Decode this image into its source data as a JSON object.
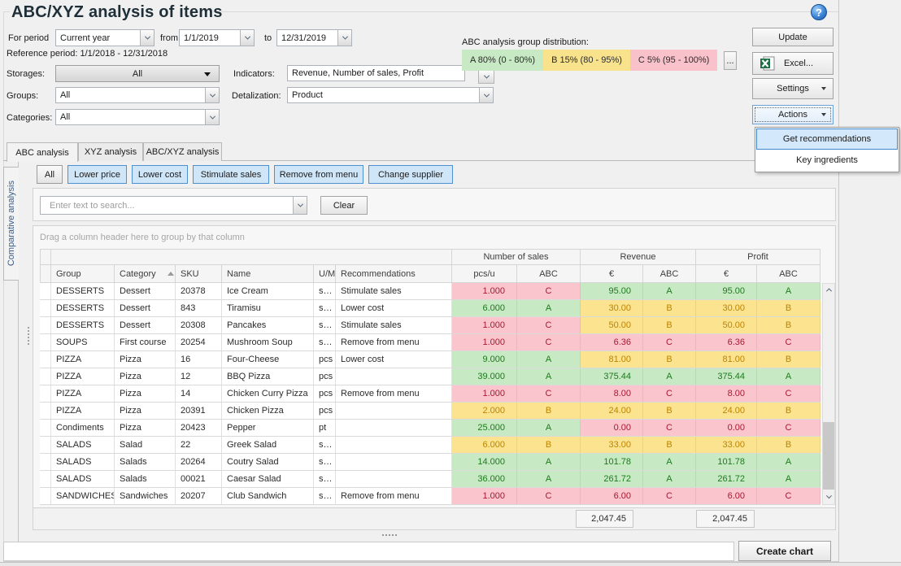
{
  "window": {
    "title": "ABC/XYZ analysis of items",
    "help_icon": "?"
  },
  "filters": {
    "for_period_label": "For period",
    "period_value": "Current year",
    "from_label": "from",
    "from_value": "1/1/2019",
    "to_label": "to",
    "to_value": "12/31/2019",
    "reference_period": "Reference period: 1/1/2018 - 12/31/2018",
    "storages_label": "Storages:",
    "storages_value": "All",
    "groups_label": "Groups:",
    "groups_value": "All",
    "categories_label": "Categories:",
    "categories_value": "All",
    "indicators_label": "Indicators:",
    "indicators_value": "Revenue, Number of sales, Profit",
    "detalization_label": "Detalization:",
    "detalization_value": "Product"
  },
  "distribution": {
    "label": "ABC analysis group distribution:",
    "segments": [
      {
        "text": "A 80% (0 - 80%)",
        "color": "#c7e9c3"
      },
      {
        "text": "B 15% (80 - 95%)",
        "color": "#f8e28c"
      },
      {
        "text": "C 5% (95 - 100%)",
        "color": "#f9c2ca"
      }
    ],
    "more": "..."
  },
  "toolbar": {
    "update": "Update",
    "excel": "Excel...",
    "settings": "Settings",
    "actions": "Actions"
  },
  "actions_menu": {
    "items": [
      "Get recommendations",
      "Key ingredients"
    ],
    "highlighted": "Get recommendations"
  },
  "tabs": [
    {
      "label": "ABC analysis",
      "active": true
    },
    {
      "label": "XYZ analysis",
      "active": false
    },
    {
      "label": "ABC/XYZ analysis",
      "active": false
    }
  ],
  "side_tab": "Comparative analysis",
  "filter_buttons": [
    {
      "label": "All",
      "style": "default"
    },
    {
      "label": "Lower price",
      "style": "blue"
    },
    {
      "label": "Lower cost",
      "style": "blue"
    },
    {
      "label": "Stimulate sales",
      "style": "blue"
    },
    {
      "label": "Remove from menu",
      "style": "blue"
    },
    {
      "label": "Change supplier",
      "style": "blue"
    }
  ],
  "search": {
    "placeholder": "Enter text to search...",
    "clear_label": "Clear"
  },
  "grid": {
    "group_hint": "Drag a column header here to group by that column",
    "bands": [
      "Number of sales",
      "Revenue",
      "Profit"
    ],
    "columns": {
      "group": "Group",
      "category": "Category",
      "sku": "SKU",
      "name": "Name",
      "um": "U/M",
      "recommendations": "Recommendations"
    },
    "subcolumns": {
      "sales_qty": "pcs/u",
      "sales_abc": "ABC",
      "revenue_eur": "€",
      "revenue_abc": "ABC",
      "profit_eur": "€",
      "profit_abc": "ABC"
    },
    "sorted_column": "Category",
    "rows": [
      {
        "group": "DESSERTS",
        "category": "Dessert",
        "sku": "20378",
        "name": "Ice Cream",
        "um": "s…",
        "recommendation": "Stimulate sales",
        "sales": "1.000",
        "sales_abc": "C",
        "revenue": "95.00",
        "revenue_abc": "A",
        "profit": "95.00",
        "profit_abc": "A"
      },
      {
        "group": "DESSERTS",
        "category": "Dessert",
        "sku": "843",
        "name": "Tiramisu",
        "um": "s…",
        "recommendation": "Lower cost",
        "sales": "6.000",
        "sales_abc": "A",
        "revenue": "30.00",
        "revenue_abc": "B",
        "profit": "30.00",
        "profit_abc": "B"
      },
      {
        "group": "DESSERTS",
        "category": "Dessert",
        "sku": "20308",
        "name": "Pancakes",
        "um": "s…",
        "recommendation": "Stimulate sales",
        "sales": "1.000",
        "sales_abc": "C",
        "revenue": "50.00",
        "revenue_abc": "B",
        "profit": "50.00",
        "profit_abc": "B"
      },
      {
        "group": "SOUPS",
        "category": "First course",
        "sku": "20254",
        "name": "Mushroom Soup",
        "um": "s…",
        "recommendation": "Remove from menu",
        "sales": "1.000",
        "sales_abc": "C",
        "revenue": "6.36",
        "revenue_abc": "C",
        "profit": "6.36",
        "profit_abc": "C"
      },
      {
        "group": "PIZZA",
        "category": "Pizza",
        "sku": "16",
        "name": "Four-Cheese",
        "um": "pcs",
        "recommendation": "Lower cost",
        "sales": "9.000",
        "sales_abc": "A",
        "revenue": "81.00",
        "revenue_abc": "B",
        "profit": "81.00",
        "profit_abc": "B"
      },
      {
        "group": "PIZZA",
        "category": "Pizza",
        "sku": "12",
        "name": "BBQ Pizza",
        "um": "pcs",
        "recommendation": "",
        "sales": "39.000",
        "sales_abc": "A",
        "revenue": "375.44",
        "revenue_abc": "A",
        "profit": "375.44",
        "profit_abc": "A"
      },
      {
        "group": "PIZZA",
        "category": "Pizza",
        "sku": "14",
        "name": "Chicken Curry Pizza",
        "um": "pcs",
        "recommendation": "Remove from menu",
        "sales": "1.000",
        "sales_abc": "C",
        "revenue": "8.00",
        "revenue_abc": "C",
        "profit": "8.00",
        "profit_abc": "C"
      },
      {
        "group": "PIZZA",
        "category": "Pizza",
        "sku": "20391",
        "name": "Chicken Pizza",
        "um": "pcs",
        "recommendation": "",
        "sales": "2.000",
        "sales_abc": "B",
        "revenue": "24.00",
        "revenue_abc": "B",
        "profit": "24.00",
        "profit_abc": "B"
      },
      {
        "group": "Condiments",
        "category": "Pizza",
        "sku": "20423",
        "name": "Pepper",
        "um": "pt",
        "recommendation": "",
        "sales": "25.000",
        "sales_abc": "A",
        "revenue": "0.00",
        "revenue_abc": "C",
        "profit": "0.00",
        "profit_abc": "C"
      },
      {
        "group": "SALADS",
        "category": "Salad",
        "sku": "22",
        "name": "Greek Salad",
        "um": "s…",
        "recommendation": "",
        "sales": "6.000",
        "sales_abc": "B",
        "revenue": "33.00",
        "revenue_abc": "B",
        "profit": "33.00",
        "profit_abc": "B"
      },
      {
        "group": "SALADS",
        "category": "Salads",
        "sku": "20264",
        "name": "Coutry Salad",
        "um": "s…",
        "recommendation": "",
        "sales": "14.000",
        "sales_abc": "A",
        "revenue": "101.78",
        "revenue_abc": "A",
        "profit": "101.78",
        "profit_abc": "A"
      },
      {
        "group": "SALADS",
        "category": "Salads",
        "sku": "00021",
        "name": "Caesar Salad",
        "um": "s…",
        "recommendation": "",
        "sales": "36.000",
        "sales_abc": "A",
        "revenue": "261.72",
        "revenue_abc": "A",
        "profit": "261.72",
        "profit_abc": "A"
      },
      {
        "group": "SANDWICHES",
        "category": "Sandwiches",
        "sku": "20207",
        "name": "Club Sandwich",
        "um": "s…",
        "recommendation": "Remove from menu",
        "sales": "1.000",
        "sales_abc": "C",
        "revenue": "6.00",
        "revenue_abc": "C",
        "profit": "6.00",
        "profit_abc": "C"
      }
    ],
    "totals": {
      "revenue": "2,047.45",
      "profit": "2,047.45"
    }
  },
  "bottom": {
    "create_chart": "Create chart"
  },
  "colors": {
    "class_a_bg": "#c7e9c3",
    "class_a_text": "#1e7a1e",
    "class_b_bg": "#fbe390",
    "class_b_text": "#bd8400",
    "class_c_bg": "#fbc5cd",
    "class_c_text": "#a51931",
    "filter_blue_bg": "#cfe5f8",
    "filter_blue_border": "#4e90d0",
    "menu_highlight_bg": "#d3e8fb"
  }
}
